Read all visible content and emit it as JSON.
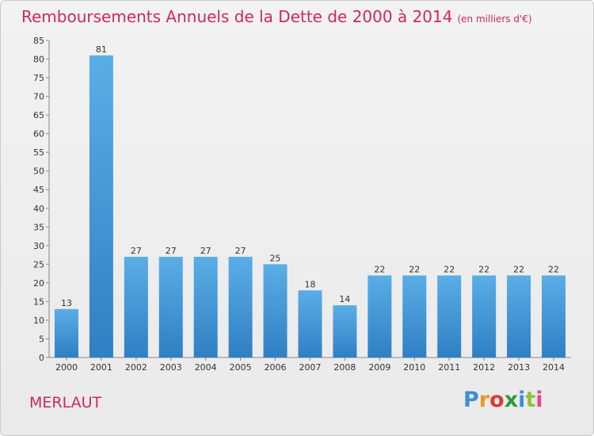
{
  "chart_data": {
    "type": "bar",
    "title": "Remboursements Annuels de la Dette de 2000 à 2014",
    "subtitle": "(en milliers d'€)",
    "categories": [
      "2000",
      "2001",
      "2002",
      "2003",
      "2004",
      "2005",
      "2006",
      "2007",
      "2008",
      "2009",
      "2010",
      "2011",
      "2012",
      "2013",
      "2014"
    ],
    "values": [
      13,
      81,
      27,
      27,
      27,
      27,
      25,
      18,
      14,
      22,
      22,
      22,
      22,
      22,
      22
    ],
    "ylim": [
      0,
      85
    ],
    "yticks": [
      0,
      5,
      10,
      15,
      20,
      25,
      30,
      35,
      40,
      45,
      50,
      55,
      60,
      65,
      70,
      75,
      80,
      85
    ],
    "xlabel": "",
    "ylabel": "",
    "grid": false,
    "bar_color": "#4a9fdc"
  },
  "footer": {
    "commune": "MERLAUT",
    "logo_text": "Proxiti",
    "logo_colors": [
      "#3a8fd8",
      "#e89a1e",
      "#d93a3a",
      "#2f9a3a",
      "#3a8fd8",
      "#8ac43a",
      "#e04a8a"
    ]
  }
}
